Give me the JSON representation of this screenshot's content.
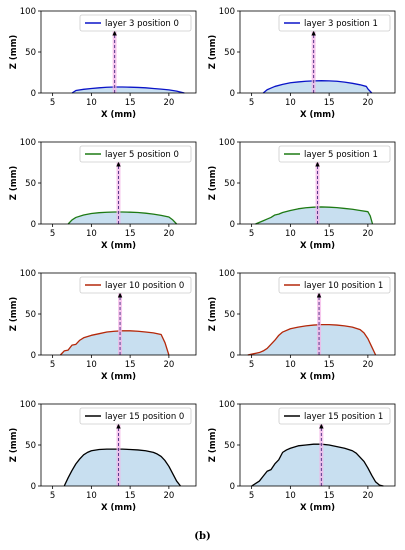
{
  "figure_caption": "(b)",
  "chart_data": [
    {
      "type": "area",
      "title": "",
      "legend": {
        "label": "layer 3 position 0",
        "placement": "top-right"
      },
      "color": "#0a14c8",
      "fill_color": "#c8dff0",
      "xlabel": "X (mm)",
      "ylabel": "Z (mm)",
      "xlim": [
        3.5,
        23.5
      ],
      "ylim": [
        0,
        100
      ],
      "xticks": [
        5,
        10,
        15,
        20
      ],
      "yticks": [
        0,
        50,
        100
      ],
      "marker_x": 13.0,
      "marker_top": 75,
      "x": [
        7.5,
        8.0,
        9.0,
        10.0,
        11.0,
        12.0,
        13.0,
        14.0,
        15.0,
        16.0,
        17.0,
        18.0,
        19.0,
        20.0,
        21.0,
        22.0
      ],
      "y": [
        0,
        3,
        4.5,
        5.5,
        6.3,
        7,
        7.3,
        7.3,
        7.1,
        6.8,
        6.3,
        5.5,
        4.7,
        3.8,
        2.3,
        0
      ]
    },
    {
      "type": "area",
      "title": "",
      "legend": {
        "label": "layer 3 position 1",
        "placement": "top-right"
      },
      "color": "#0a14c8",
      "fill_color": "#c8dff0",
      "xlabel": "X (mm)",
      "ylabel": "Z (mm)",
      "xlim": [
        3.5,
        23.5
      ],
      "ylim": [
        0,
        100
      ],
      "xticks": [
        5,
        10,
        15,
        20
      ],
      "yticks": [
        0,
        50,
        100
      ],
      "marker_x": 13.0,
      "marker_top": 75,
      "x": [
        6.5,
        7.0,
        7.5,
        8.0,
        9.0,
        10.0,
        11.0,
        12.0,
        13.0,
        14.0,
        15.0,
        16.0,
        17.0,
        18.0,
        19.0,
        19.8,
        20.0,
        20.5
      ],
      "y": [
        0,
        4,
        6,
        8,
        10.5,
        12.5,
        13.5,
        14.3,
        14.8,
        15,
        14.8,
        14.3,
        13.3,
        11.8,
        10,
        8,
        5,
        0
      ]
    },
    {
      "type": "area",
      "title": "",
      "legend": {
        "label": "layer 5 position 0",
        "placement": "top-right"
      },
      "color": "#1e7a14",
      "fill_color": "#c8dff0",
      "xlabel": "X (mm)",
      "ylabel": "Z (mm)",
      "xlim": [
        3.5,
        23.5
      ],
      "ylim": [
        0,
        100
      ],
      "xticks": [
        5,
        10,
        15,
        20
      ],
      "yticks": [
        0,
        50,
        100
      ],
      "marker_x": 13.5,
      "marker_top": 75,
      "x": [
        7.0,
        7.5,
        8.0,
        9.0,
        10.0,
        11.0,
        12.0,
        13.0,
        14.0,
        15.0,
        16.0,
        17.0,
        18.0,
        19.0,
        20.0,
        20.5,
        21.0
      ],
      "y": [
        0,
        5,
        8,
        11,
        12.8,
        13.8,
        14.3,
        14.6,
        14.6,
        14.4,
        14,
        13.2,
        12,
        10.5,
        8.5,
        5,
        0
      ]
    },
    {
      "type": "area",
      "title": "",
      "legend": {
        "label": "layer 5 position 1",
        "placement": "top-right"
      },
      "color": "#1e7a14",
      "fill_color": "#c8dff0",
      "xlabel": "X (mm)",
      "ylabel": "Z (mm)",
      "xlim": [
        3.5,
        23.5
      ],
      "ylim": [
        0,
        100
      ],
      "xticks": [
        5,
        10,
        15,
        20
      ],
      "yticks": [
        0,
        50,
        100
      ],
      "marker_x": 13.5,
      "marker_top": 75,
      "x": [
        5.5,
        6.0,
        6.5,
        7.0,
        7.5,
        8.0,
        8.5,
        9.0,
        10.0,
        11.0,
        12.0,
        13.0,
        14.0,
        15.0,
        16.0,
        17.0,
        18.0,
        19.0,
        20.0,
        20.3,
        20.6
      ],
      "y": [
        0,
        2,
        4,
        6,
        8,
        11,
        12,
        14,
        16.5,
        18.5,
        19.8,
        20.5,
        20.8,
        20.5,
        20,
        19,
        18,
        16.5,
        15,
        10,
        0
      ]
    },
    {
      "type": "area",
      "title": "",
      "legend": {
        "label": "layer 10 position 0",
        "placement": "top-right"
      },
      "color": "#b4280a",
      "fill_color": "#c8dff0",
      "xlabel": "X (mm)",
      "ylabel": "Z (mm)",
      "xlim": [
        3.5,
        23.5
      ],
      "ylim": [
        0,
        100
      ],
      "xticks": [
        5,
        10,
        15,
        20
      ],
      "yticks": [
        0,
        50,
        100
      ],
      "marker_x": 13.7,
      "marker_top": 75,
      "x": [
        6.0,
        6.5,
        7.0,
        7.5,
        8.0,
        8.5,
        9.0,
        10.0,
        11.0,
        12.0,
        13.0,
        14.0,
        15.0,
        16.0,
        17.0,
        18.0,
        19.0,
        19.5,
        20.0
      ],
      "y": [
        0,
        5,
        6,
        12,
        13,
        18,
        21,
        24,
        26,
        28,
        29,
        29.5,
        29.5,
        29,
        28,
        27,
        25,
        15,
        0
      ]
    },
    {
      "type": "area",
      "title": "",
      "legend": {
        "label": "layer 10 position 1",
        "placement": "top-right"
      },
      "color": "#b4280a",
      "fill_color": "#c8dff0",
      "xlabel": "X (mm)",
      "ylabel": "Z (mm)",
      "xlim": [
        3.5,
        23.5
      ],
      "ylim": [
        0,
        100
      ],
      "xticks": [
        5,
        10,
        15,
        20
      ],
      "yticks": [
        0,
        50,
        100
      ],
      "marker_x": 13.7,
      "marker_top": 75,
      "x": [
        4.5,
        5.0,
        6.0,
        6.5,
        7.0,
        7.5,
        8.0,
        8.5,
        9.0,
        10.0,
        11.0,
        12.0,
        13.0,
        14.0,
        15.0,
        16.0,
        17.0,
        18.0,
        19.0,
        19.5,
        20.0,
        20.5,
        21.0
      ],
      "y": [
        0,
        1,
        3,
        5,
        8,
        13,
        18,
        24,
        28,
        32,
        34,
        35.5,
        36.5,
        37,
        37,
        36.5,
        35.5,
        34,
        31,
        27,
        20,
        10,
        0
      ]
    },
    {
      "type": "area",
      "title": "",
      "legend": {
        "label": "layer 15 position 0",
        "placement": "top-right"
      },
      "color": "#000000",
      "fill_color": "#c8dff0",
      "xlabel": "X (mm)",
      "ylabel": "Z (mm)",
      "xlim": [
        3.5,
        23.5
      ],
      "ylim": [
        0,
        100
      ],
      "xticks": [
        5,
        10,
        15,
        20
      ],
      "yticks": [
        0,
        50,
        100
      ],
      "marker_x": 13.5,
      "marker_top": 75,
      "x": [
        6.5,
        7.0,
        7.5,
        8.0,
        8.5,
        9.0,
        9.5,
        10.0,
        11.0,
        12.0,
        13.0,
        14.0,
        15.0,
        16.0,
        17.0,
        18.0,
        18.5,
        19.0,
        19.5,
        20.0,
        20.5,
        21.0,
        21.5
      ],
      "y": [
        0,
        10,
        19,
        27,
        33,
        38,
        41,
        43,
        44.5,
        45,
        45,
        45,
        44.5,
        44,
        43,
        41,
        39,
        36,
        31,
        24,
        15,
        6,
        0
      ]
    },
    {
      "type": "area",
      "title": "",
      "legend": {
        "label": "layer 15 position 1",
        "placement": "top-right"
      },
      "color": "#000000",
      "fill_color": "#c8dff0",
      "xlabel": "X (mm)",
      "ylabel": "Z (mm)",
      "xlim": [
        3.5,
        23.5
      ],
      "ylim": [
        0,
        100
      ],
      "xticks": [
        5,
        10,
        15,
        20
      ],
      "yticks": [
        0,
        50,
        100
      ],
      "marker_x": 14.0,
      "marker_top": 75,
      "x": [
        5.0,
        5.5,
        6.0,
        6.5,
        7.0,
        7.5,
        8.0,
        8.5,
        9.0,
        9.5,
        10.0,
        11.0,
        12.0,
        13.0,
        14.0,
        15.0,
        16.0,
        17.0,
        18.0,
        18.5,
        19.0,
        19.5,
        20.0,
        20.5,
        21.0,
        21.5,
        22.0
      ],
      "y": [
        0,
        3,
        6,
        12,
        18,
        20,
        27,
        32,
        41,
        44,
        46,
        49,
        50,
        51,
        51,
        50,
        48,
        46,
        43,
        40,
        35,
        30,
        22,
        13,
        5,
        1,
        0
      ]
    }
  ]
}
